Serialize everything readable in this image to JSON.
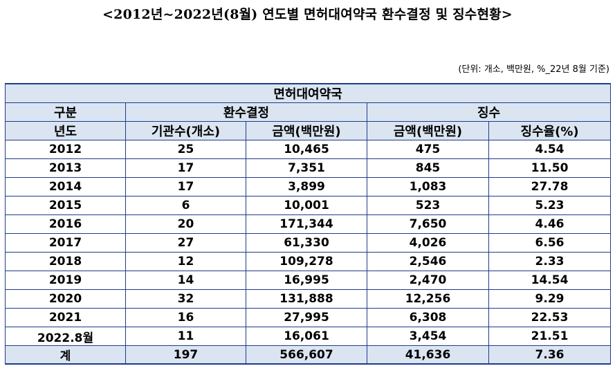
{
  "title": "<2012년~2022년(8월) 연도별 면허대여약국 환수결정 및 징수현황>",
  "unit_note": "(단위: 개소, 백만원, %_22년 8월 기준)",
  "table": {
    "group_title": "면허대여약국",
    "row_header_top": "구분",
    "row_header_bottom": "년도",
    "group_recovery": "환수결정",
    "group_collection": "징수",
    "columns": [
      "기관수(개소)",
      "금액(백만원)",
      "금액(백만원)",
      "징수율(%)"
    ],
    "rows": [
      {
        "year": "2012",
        "count": "25",
        "recovery_amount": "10,465",
        "collected_amount": "475",
        "rate": "4.54"
      },
      {
        "year": "2013",
        "count": "17",
        "recovery_amount": "7,351",
        "collected_amount": "845",
        "rate": "11.50"
      },
      {
        "year": "2014",
        "count": "17",
        "recovery_amount": "3,899",
        "collected_amount": "1,083",
        "rate": "27.78"
      },
      {
        "year": "2015",
        "count": "6",
        "recovery_amount": "10,001",
        "collected_amount": "523",
        "rate": "5.23"
      },
      {
        "year": "2016",
        "count": "20",
        "recovery_amount": "171,344",
        "collected_amount": "7,650",
        "rate": "4.46"
      },
      {
        "year": "2017",
        "count": "27",
        "recovery_amount": "61,330",
        "collected_amount": "4,026",
        "rate": "6.56"
      },
      {
        "year": "2018",
        "count": "12",
        "recovery_amount": "109,278",
        "collected_amount": "2,546",
        "rate": "2.33"
      },
      {
        "year": "2019",
        "count": "14",
        "recovery_amount": "16,995",
        "collected_amount": "2,470",
        "rate": "14.54"
      },
      {
        "year": "2020",
        "count": "32",
        "recovery_amount": "131,888",
        "collected_amount": "12,256",
        "rate": "9.29"
      },
      {
        "year": "2021",
        "count": "16",
        "recovery_amount": "27,995",
        "collected_amount": "6,308",
        "rate": "22.53"
      },
      {
        "year": "2022.8월",
        "count": "11",
        "recovery_amount": "16,061",
        "collected_amount": "3,454",
        "rate": "21.51"
      }
    ],
    "total": {
      "label": "계",
      "count": "197",
      "recovery_amount": "566,607",
      "collected_amount": "41,636",
      "rate": "7.36"
    }
  },
  "colors": {
    "header_fill": "#dbe5f1",
    "border": "#1f3a8a"
  }
}
